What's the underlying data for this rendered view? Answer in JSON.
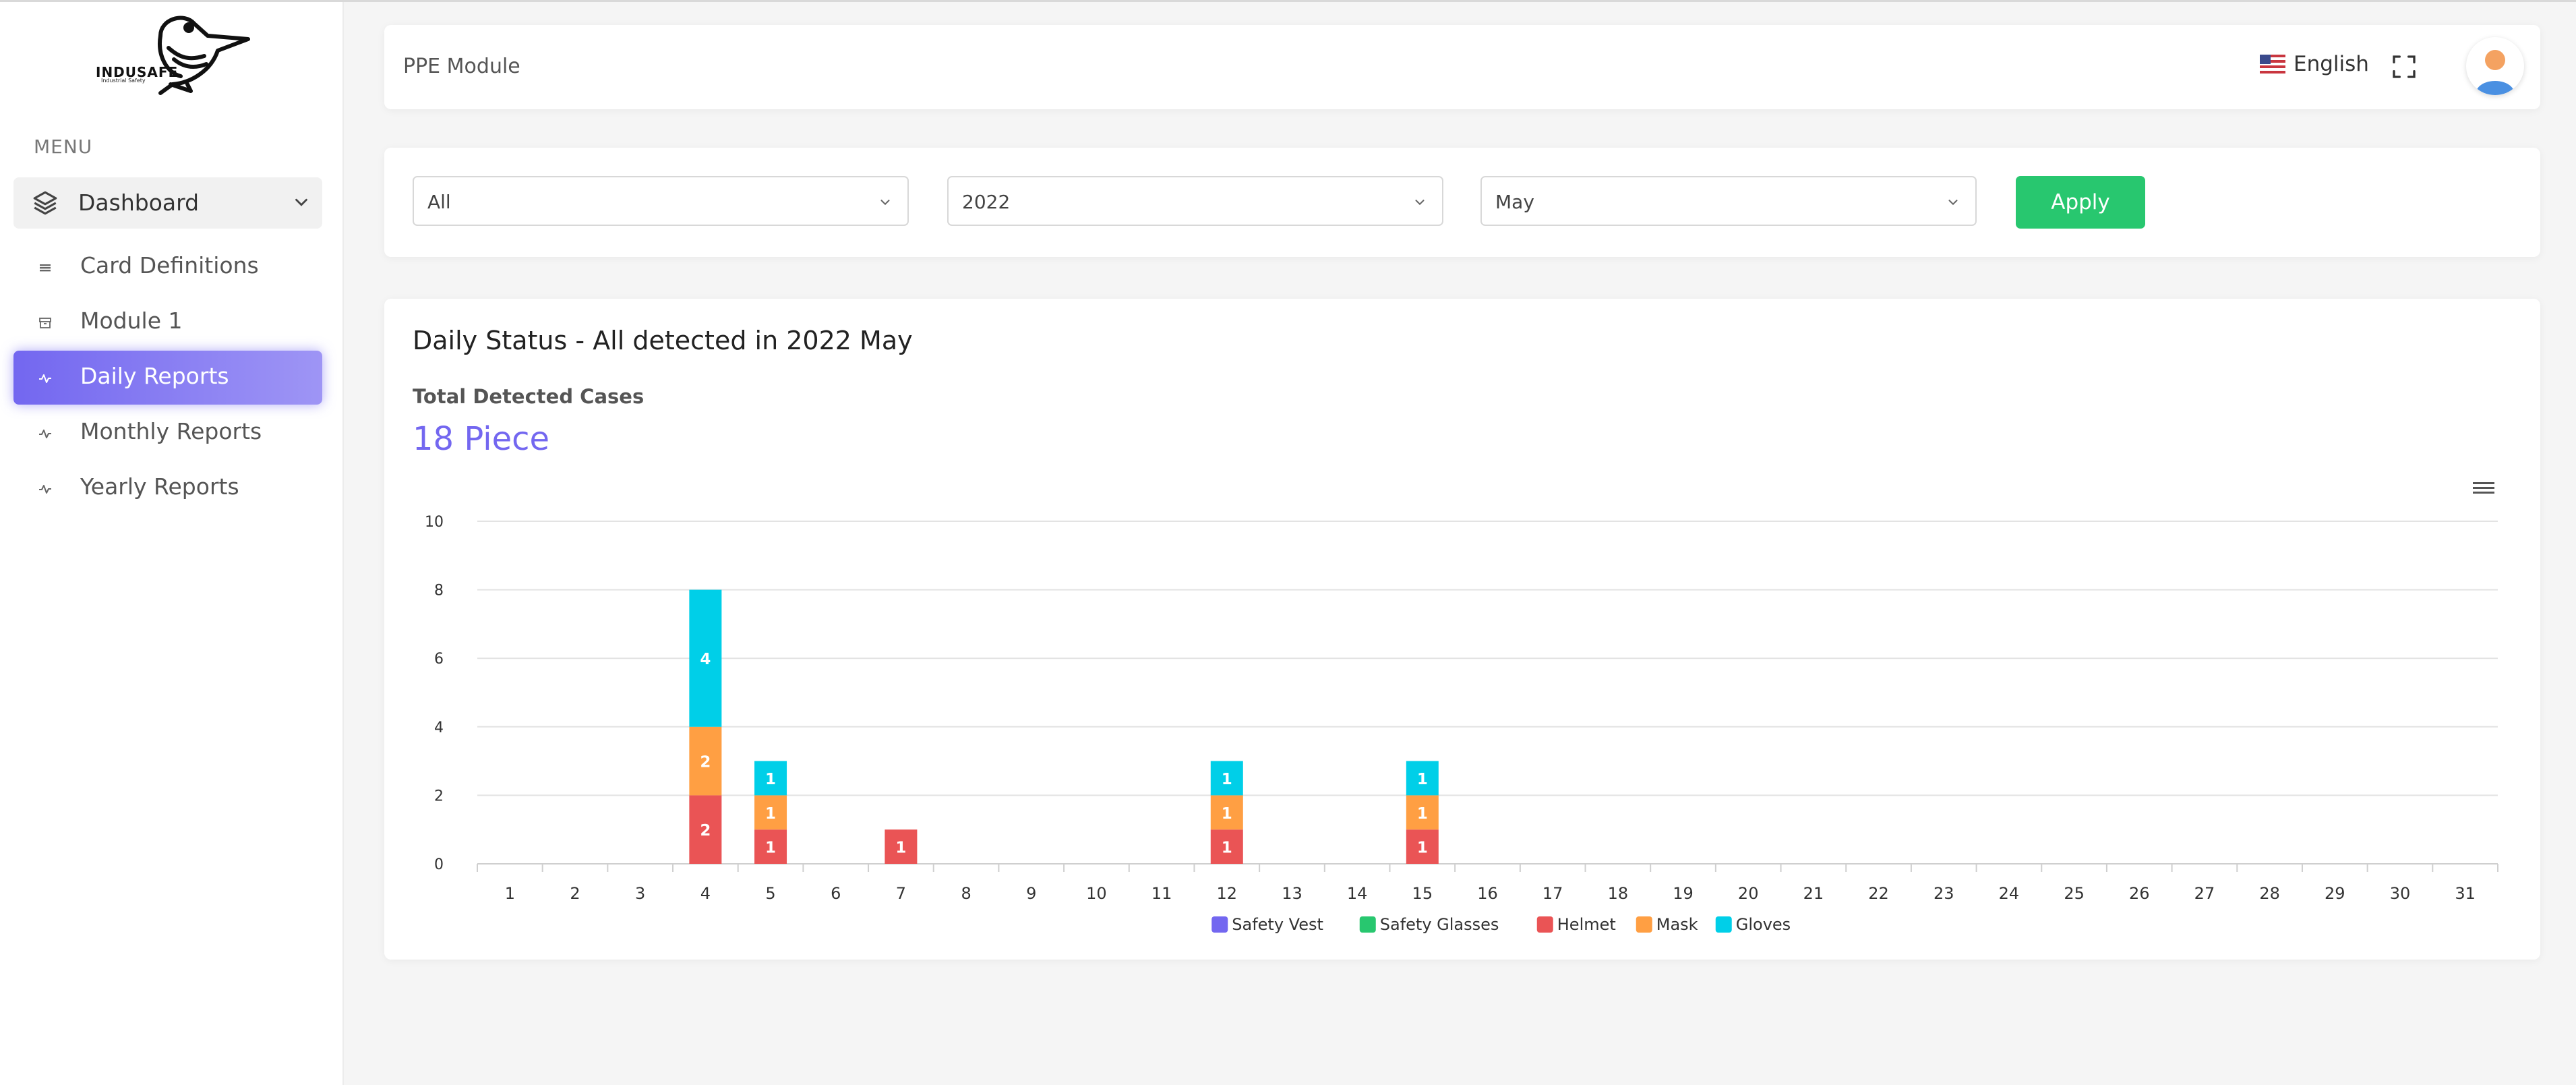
{
  "brand": {
    "name": "INDUSAFE",
    "tagline": "Industrial Safety"
  },
  "sidebar": {
    "menu_title": "MENU",
    "dashboard_label": "Dashboard",
    "items": [
      {
        "label": "Card Definitions",
        "icon": "list-icon"
      },
      {
        "label": "Module 1",
        "icon": "archive-icon"
      },
      {
        "label": "Daily Reports",
        "icon": "activity-icon",
        "active": true
      },
      {
        "label": "Monthly Reports",
        "icon": "activity-icon"
      },
      {
        "label": "Yearly Reports",
        "icon": "activity-icon"
      }
    ]
  },
  "header": {
    "title": "PPE Module",
    "language": "English"
  },
  "filters": {
    "type_value": "All",
    "year_value": "2022",
    "month_value": "May",
    "apply_label": "Apply"
  },
  "chart": {
    "title": "Daily Status - All detected in 2022 May",
    "total_label": "Total Detected Cases",
    "total_value": "18 Piece"
  },
  "colors": {
    "accent": "#7367f0",
    "apply": "#28c76f",
    "safety_vest": "#7367f0",
    "safety_glasses": "#28c76f",
    "helmet": "#ea5455",
    "mask": "#ff9f43",
    "gloves": "#00cfe8"
  },
  "chart_data": {
    "type": "bar",
    "stacked": true,
    "categories": [
      "1",
      "2",
      "3",
      "4",
      "5",
      "6",
      "7",
      "8",
      "9",
      "10",
      "11",
      "12",
      "13",
      "14",
      "15",
      "16",
      "17",
      "18",
      "19",
      "20",
      "21",
      "22",
      "23",
      "24",
      "25",
      "26",
      "27",
      "28",
      "29",
      "30",
      "31"
    ],
    "yticks": [
      0,
      2,
      4,
      6,
      8,
      10
    ],
    "ylim": [
      0,
      10
    ],
    "legend_position": "bottom",
    "grid": true,
    "series": [
      {
        "name": "Safety Vest",
        "color": "#7367f0",
        "values": [
          0,
          0,
          0,
          0,
          0,
          0,
          0,
          0,
          0,
          0,
          0,
          0,
          0,
          0,
          0,
          0,
          0,
          0,
          0,
          0,
          0,
          0,
          0,
          0,
          0,
          0,
          0,
          0,
          0,
          0,
          0
        ]
      },
      {
        "name": "Safety Glasses",
        "color": "#28c76f",
        "values": [
          0,
          0,
          0,
          0,
          0,
          0,
          0,
          0,
          0,
          0,
          0,
          0,
          0,
          0,
          0,
          0,
          0,
          0,
          0,
          0,
          0,
          0,
          0,
          0,
          0,
          0,
          0,
          0,
          0,
          0,
          0
        ]
      },
      {
        "name": "Helmet",
        "color": "#ea5455",
        "values": [
          0,
          0,
          0,
          2,
          1,
          0,
          1,
          0,
          0,
          0,
          0,
          1,
          0,
          0,
          1,
          0,
          0,
          0,
          0,
          0,
          0,
          0,
          0,
          0,
          0,
          0,
          0,
          0,
          0,
          0,
          0
        ]
      },
      {
        "name": "Mask",
        "color": "#ff9f43",
        "values": [
          0,
          0,
          0,
          2,
          1,
          0,
          0,
          0,
          0,
          0,
          0,
          1,
          0,
          0,
          1,
          0,
          0,
          0,
          0,
          0,
          0,
          0,
          0,
          0,
          0,
          0,
          0,
          0,
          0,
          0,
          0
        ]
      },
      {
        "name": "Gloves",
        "color": "#00cfe8",
        "values": [
          0,
          0,
          0,
          4,
          1,
          0,
          0,
          0,
          0,
          0,
          0,
          1,
          0,
          0,
          1,
          0,
          0,
          0,
          0,
          0,
          0,
          0,
          0,
          0,
          0,
          0,
          0,
          0,
          0,
          0,
          0
        ]
      }
    ]
  }
}
